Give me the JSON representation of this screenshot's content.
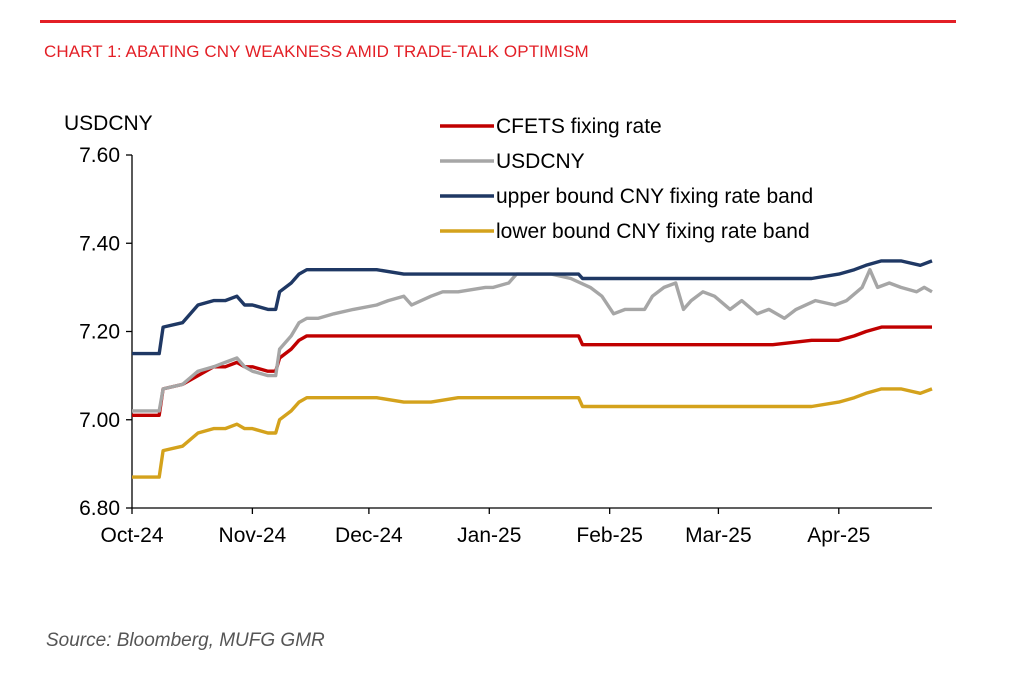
{
  "title": "CHART 1: ABATING CNY WEAKNESS AMID TRADE-TALK OPTIMISM",
  "source": "Source: Bloomberg, MUFG GMR",
  "chart_data": {
    "type": "line",
    "ylabel": "USDCNY",
    "ylim": [
      6.8,
      7.6
    ],
    "yticks": [
      "7.60",
      "7.40",
      "7.20",
      "7.00",
      "6.80"
    ],
    "ytick_values": [
      7.6,
      7.4,
      7.2,
      7.0,
      6.8
    ],
    "xticks": [
      "Oct-24",
      "Nov-24",
      "Dec-24",
      "Jan-25",
      "Feb-25",
      "Mar-25",
      "Apr-25"
    ],
    "xtick_dates": [
      "2024-10-01",
      "2024-11-01",
      "2024-12-01",
      "2025-01-01",
      "2025-02-01",
      "2025-03-01",
      "2025-04-01"
    ],
    "xlim": [
      "2024-10-01",
      "2025-04-25"
    ],
    "grid": false,
    "legend_position": "top-right",
    "series": [
      {
        "name": "CFETS fixing rate",
        "color": "#c00000",
        "points": [
          [
            "2024-10-01",
            7.01
          ],
          [
            "2024-10-08",
            7.01
          ],
          [
            "2024-10-09",
            7.07
          ],
          [
            "2024-10-14",
            7.08
          ],
          [
            "2024-10-18",
            7.1
          ],
          [
            "2024-10-22",
            7.12
          ],
          [
            "2024-10-25",
            7.12
          ],
          [
            "2024-10-28",
            7.13
          ],
          [
            "2024-10-30",
            7.12
          ],
          [
            "2024-11-01",
            7.12
          ],
          [
            "2024-11-05",
            7.11
          ],
          [
            "2024-11-07",
            7.11
          ],
          [
            "2024-11-08",
            7.14
          ],
          [
            "2024-11-11",
            7.16
          ],
          [
            "2024-11-13",
            7.18
          ],
          [
            "2024-11-15",
            7.19
          ],
          [
            "2024-11-18",
            7.19
          ],
          [
            "2024-11-22",
            7.19
          ],
          [
            "2024-11-27",
            7.19
          ],
          [
            "2024-12-03",
            7.19
          ],
          [
            "2024-12-10",
            7.19
          ],
          [
            "2024-12-17",
            7.19
          ],
          [
            "2024-12-24",
            7.19
          ],
          [
            "2025-01-02",
            7.19
          ],
          [
            "2025-01-10",
            7.19
          ],
          [
            "2025-01-17",
            7.19
          ],
          [
            "2025-01-24",
            7.19
          ],
          [
            "2025-01-25",
            7.17
          ],
          [
            "2025-02-05",
            7.17
          ],
          [
            "2025-02-15",
            7.17
          ],
          [
            "2025-02-25",
            7.17
          ],
          [
            "2025-03-05",
            7.17
          ],
          [
            "2025-03-15",
            7.17
          ],
          [
            "2025-03-25",
            7.18
          ],
          [
            "2025-04-01",
            7.18
          ],
          [
            "2025-04-05",
            7.19
          ],
          [
            "2025-04-08",
            7.2
          ],
          [
            "2025-04-12",
            7.21
          ],
          [
            "2025-04-17",
            7.21
          ],
          [
            "2025-04-22",
            7.21
          ],
          [
            "2025-04-25",
            7.21
          ]
        ]
      },
      {
        "name": "USDCNY",
        "color": "#a6a6a6",
        "points": [
          [
            "2024-10-01",
            7.02
          ],
          [
            "2024-10-08",
            7.02
          ],
          [
            "2024-10-09",
            7.07
          ],
          [
            "2024-10-14",
            7.08
          ],
          [
            "2024-10-18",
            7.11
          ],
          [
            "2024-10-22",
            7.12
          ],
          [
            "2024-10-25",
            7.13
          ],
          [
            "2024-10-28",
            7.14
          ],
          [
            "2024-10-30",
            7.12
          ],
          [
            "2024-11-01",
            7.11
          ],
          [
            "2024-11-05",
            7.1
          ],
          [
            "2024-11-07",
            7.1
          ],
          [
            "2024-11-08",
            7.16
          ],
          [
            "2024-11-11",
            7.19
          ],
          [
            "2024-11-13",
            7.22
          ],
          [
            "2024-11-15",
            7.23
          ],
          [
            "2024-11-18",
            7.23
          ],
          [
            "2024-11-22",
            7.24
          ],
          [
            "2024-11-27",
            7.25
          ],
          [
            "2024-12-03",
            7.26
          ],
          [
            "2024-12-06",
            7.27
          ],
          [
            "2024-12-10",
            7.28
          ],
          [
            "2024-12-12",
            7.26
          ],
          [
            "2024-12-17",
            7.28
          ],
          [
            "2024-12-20",
            7.29
          ],
          [
            "2024-12-24",
            7.29
          ],
          [
            "2024-12-31",
            7.3
          ],
          [
            "2025-01-02",
            7.3
          ],
          [
            "2025-01-06",
            7.31
          ],
          [
            "2025-01-08",
            7.33
          ],
          [
            "2025-01-13",
            7.33
          ],
          [
            "2025-01-17",
            7.33
          ],
          [
            "2025-01-22",
            7.32
          ],
          [
            "2025-01-27",
            7.3
          ],
          [
            "2025-01-30",
            7.28
          ],
          [
            "2025-02-02",
            7.24
          ],
          [
            "2025-02-05",
            7.25
          ],
          [
            "2025-02-10",
            7.25
          ],
          [
            "2025-02-12",
            7.28
          ],
          [
            "2025-02-15",
            7.3
          ],
          [
            "2025-02-18",
            7.31
          ],
          [
            "2025-02-20",
            7.25
          ],
          [
            "2025-02-22",
            7.27
          ],
          [
            "2025-02-25",
            7.29
          ],
          [
            "2025-02-28",
            7.28
          ],
          [
            "2025-03-04",
            7.25
          ],
          [
            "2025-03-07",
            7.27
          ],
          [
            "2025-03-11",
            7.24
          ],
          [
            "2025-03-14",
            7.25
          ],
          [
            "2025-03-18",
            7.23
          ],
          [
            "2025-03-21",
            7.25
          ],
          [
            "2025-03-26",
            7.27
          ],
          [
            "2025-03-31",
            7.26
          ],
          [
            "2025-04-03",
            7.27
          ],
          [
            "2025-04-07",
            7.3
          ],
          [
            "2025-04-09",
            7.34
          ],
          [
            "2025-04-11",
            7.3
          ],
          [
            "2025-04-14",
            7.31
          ],
          [
            "2025-04-17",
            7.3
          ],
          [
            "2025-04-21",
            7.29
          ],
          [
            "2025-04-23",
            7.3
          ],
          [
            "2025-04-25",
            7.29
          ]
        ]
      },
      {
        "name": "upper bound CNY fixing rate band",
        "color": "#1f3864",
        "points": [
          [
            "2024-10-01",
            7.15
          ],
          [
            "2024-10-08",
            7.15
          ],
          [
            "2024-10-09",
            7.21
          ],
          [
            "2024-10-14",
            7.22
          ],
          [
            "2024-10-18",
            7.26
          ],
          [
            "2024-10-22",
            7.27
          ],
          [
            "2024-10-25",
            7.27
          ],
          [
            "2024-10-28",
            7.28
          ],
          [
            "2024-10-30",
            7.26
          ],
          [
            "2024-11-01",
            7.26
          ],
          [
            "2024-11-05",
            7.25
          ],
          [
            "2024-11-07",
            7.25
          ],
          [
            "2024-11-08",
            7.29
          ],
          [
            "2024-11-11",
            7.31
          ],
          [
            "2024-11-13",
            7.33
          ],
          [
            "2024-11-15",
            7.34
          ],
          [
            "2024-11-18",
            7.34
          ],
          [
            "2024-11-22",
            7.34
          ],
          [
            "2024-11-27",
            7.34
          ],
          [
            "2024-12-03",
            7.34
          ],
          [
            "2024-12-10",
            7.33
          ],
          [
            "2024-12-17",
            7.33
          ],
          [
            "2024-12-24",
            7.33
          ],
          [
            "2025-01-02",
            7.33
          ],
          [
            "2025-01-10",
            7.33
          ],
          [
            "2025-01-17",
            7.33
          ],
          [
            "2025-01-24",
            7.33
          ],
          [
            "2025-01-25",
            7.32
          ],
          [
            "2025-02-05",
            7.32
          ],
          [
            "2025-02-15",
            7.32
          ],
          [
            "2025-02-25",
            7.32
          ],
          [
            "2025-03-05",
            7.32
          ],
          [
            "2025-03-15",
            7.32
          ],
          [
            "2025-03-25",
            7.32
          ],
          [
            "2025-04-01",
            7.33
          ],
          [
            "2025-04-05",
            7.34
          ],
          [
            "2025-04-08",
            7.35
          ],
          [
            "2025-04-12",
            7.36
          ],
          [
            "2025-04-17",
            7.36
          ],
          [
            "2025-04-22",
            7.35
          ],
          [
            "2025-04-25",
            7.36
          ]
        ]
      },
      {
        "name": "lower bound CNY fixing rate band",
        "color": "#d4a21c",
        "points": [
          [
            "2024-10-01",
            6.87
          ],
          [
            "2024-10-08",
            6.87
          ],
          [
            "2024-10-09",
            6.93
          ],
          [
            "2024-10-14",
            6.94
          ],
          [
            "2024-10-18",
            6.97
          ],
          [
            "2024-10-22",
            6.98
          ],
          [
            "2024-10-25",
            6.98
          ],
          [
            "2024-10-28",
            6.99
          ],
          [
            "2024-10-30",
            6.98
          ],
          [
            "2024-11-01",
            6.98
          ],
          [
            "2024-11-05",
            6.97
          ],
          [
            "2024-11-07",
            6.97
          ],
          [
            "2024-11-08",
            7.0
          ],
          [
            "2024-11-11",
            7.02
          ],
          [
            "2024-11-13",
            7.04
          ],
          [
            "2024-11-15",
            7.05
          ],
          [
            "2024-11-18",
            7.05
          ],
          [
            "2024-11-22",
            7.05
          ],
          [
            "2024-11-27",
            7.05
          ],
          [
            "2024-12-03",
            7.05
          ],
          [
            "2024-12-10",
            7.04
          ],
          [
            "2024-12-17",
            7.04
          ],
          [
            "2024-12-24",
            7.05
          ],
          [
            "2025-01-02",
            7.05
          ],
          [
            "2025-01-10",
            7.05
          ],
          [
            "2025-01-17",
            7.05
          ],
          [
            "2025-01-24",
            7.05
          ],
          [
            "2025-01-25",
            7.03
          ],
          [
            "2025-02-05",
            7.03
          ],
          [
            "2025-02-15",
            7.03
          ],
          [
            "2025-02-25",
            7.03
          ],
          [
            "2025-03-05",
            7.03
          ],
          [
            "2025-03-15",
            7.03
          ],
          [
            "2025-03-25",
            7.03
          ],
          [
            "2025-04-01",
            7.04
          ],
          [
            "2025-04-05",
            7.05
          ],
          [
            "2025-04-08",
            7.06
          ],
          [
            "2025-04-12",
            7.07
          ],
          [
            "2025-04-17",
            7.07
          ],
          [
            "2025-04-22",
            7.06
          ],
          [
            "2025-04-25",
            7.07
          ]
        ]
      }
    ]
  }
}
